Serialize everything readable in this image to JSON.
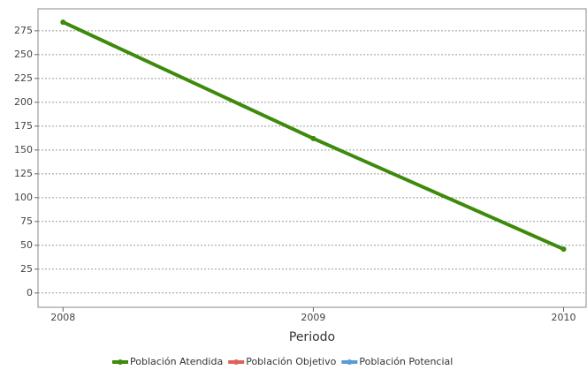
{
  "chart_data": {
    "type": "line",
    "x_label": "Periodo",
    "x": [
      2008,
      2009,
      2010
    ],
    "xlim": [
      2007.9,
      2010.09
    ],
    "xticks": [
      2008,
      2009,
      2010
    ],
    "ylim": [
      -15,
      298
    ],
    "yticks": [
      0,
      25,
      50,
      75,
      100,
      125,
      150,
      175,
      200,
      225,
      250,
      275
    ],
    "grid": true,
    "series": [
      {
        "name": "Población Atendida",
        "color": "#3d8a0c",
        "values": [
          284,
          162,
          46
        ]
      },
      {
        "name": "Población Objetivo",
        "color": "#e0605a",
        "values": [
          null,
          null,
          null
        ]
      },
      {
        "name": "Población Potencial",
        "color": "#5b9bd5",
        "values": [
          null,
          null,
          null
        ]
      }
    ]
  }
}
